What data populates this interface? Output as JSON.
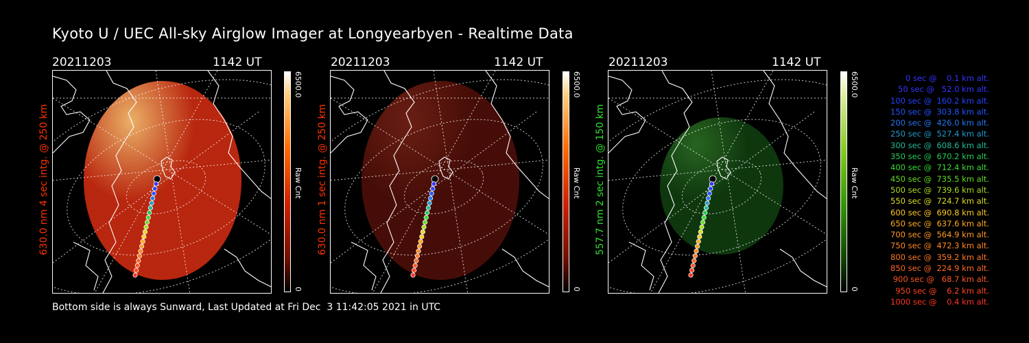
{
  "title": "Kyoto U / UEC All-sky Airglow Imager at Longyearbyen - Realtime Data",
  "footer": "Bottom side is always Sunward, Last Updated at Fri Dec  3 11:42:05 2021 in UTC",
  "panels": [
    {
      "date": "20211203",
      "time": "1142 UT",
      "ylabel": "630.0 nm 4 sec intg. @ 250 km",
      "ylabel_color": "#ff3300",
      "cbar_max": "6500.0",
      "cbar_min": "0",
      "cbar_unit": "Raw Cnt",
      "palette": "red",
      "image_color": "#c82a10",
      "image_opacity": 0.92
    },
    {
      "date": "20211203",
      "time": "1142 UT",
      "ylabel": "630.0 nm 1 sec intg. @ 250 km",
      "ylabel_color": "#ff3300",
      "cbar_max": "6500.0",
      "cbar_min": "0",
      "cbar_unit": "Raw Cnt",
      "palette": "red",
      "image_color": "#4a0e08",
      "image_opacity": 0.95
    },
    {
      "date": "20211203",
      "time": "1142 UT",
      "ylabel": "557.7 nm 2 sec intg. @ 150 km",
      "ylabel_color": "#33dd33",
      "cbar_max": "6500.0",
      "cbar_min": "0",
      "cbar_unit": "Raw Cnt",
      "palette": "green",
      "image_color": "#0f3a0f",
      "image_opacity": 0.95
    }
  ],
  "legend": [
    {
      "text": "0 sec @    0.1 km alt.",
      "color": "#3333ff"
    },
    {
      "text": "50 sec @   52.0 km alt.",
      "color": "#3333ff"
    },
    {
      "text": "100 sec @  160.2 km alt.",
      "color": "#2244ff"
    },
    {
      "text": "150 sec @  303.8 km alt.",
      "color": "#2255ff"
    },
    {
      "text": "200 sec @  426.0 km alt.",
      "color": "#2277ee"
    },
    {
      "text": "250 sec @  527.4 km alt.",
      "color": "#2299cc"
    },
    {
      "text": "300 sec @  608.6 km alt.",
      "color": "#22bb99"
    },
    {
      "text": "350 sec @  670.2 km alt.",
      "color": "#22cc55"
    },
    {
      "text": "400 sec @  712.4 km alt.",
      "color": "#33dd33"
    },
    {
      "text": "450 sec @  735.5 km alt.",
      "color": "#66dd22"
    },
    {
      "text": "500 sec @  739.6 km alt.",
      "color": "#aadd22"
    },
    {
      "text": "550 sec @  724.7 km alt.",
      "color": "#dddd22"
    },
    {
      "text": "600 sec @  690.8 km alt.",
      "color": "#ffcc22"
    },
    {
      "text": "650 sec @  637.6 km alt.",
      "color": "#ffaa22"
    },
    {
      "text": "700 sec @  564.9 km alt.",
      "color": "#ff9922"
    },
    {
      "text": "750 sec @  472.3 km alt.",
      "color": "#ff8822"
    },
    {
      "text": "800 sec @  359.2 km alt.",
      "color": "#ff7722"
    },
    {
      "text": "850 sec @  224.9 km alt.",
      "color": "#ff6622"
    },
    {
      "text": "900 sec @   68.7 km alt.",
      "color": "#ff5522"
    },
    {
      "text": "950 sec @    6.2 km alt.",
      "color": "#ff4422"
    },
    {
      "text": "1000 sec @    0.4 km alt.",
      "color": "#ff3322"
    }
  ]
}
